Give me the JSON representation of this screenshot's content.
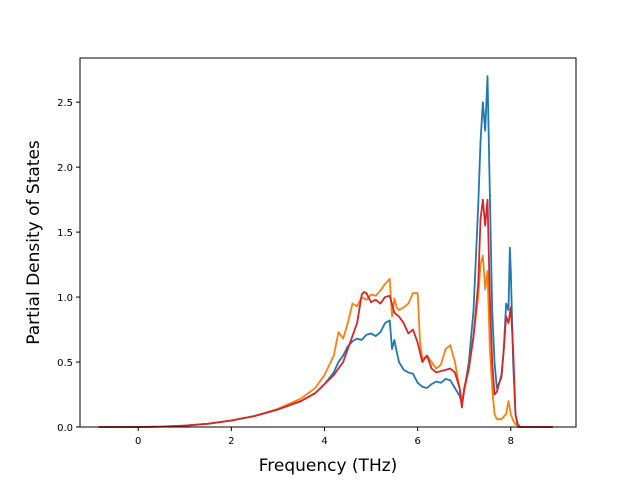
{
  "chart_data": {
    "type": "line",
    "title": "",
    "xlabel": "Frequency (THz)",
    "ylabel": "Partial Density of States",
    "xlim": [
      -1.25,
      9.4
    ],
    "ylim": [
      0,
      2.84
    ],
    "xticks": [
      0,
      2,
      4,
      6,
      8
    ],
    "yticks": [
      0.0,
      0.5,
      1.0,
      1.5,
      2.0,
      2.5
    ],
    "xtick_labels": [
      "0",
      "2",
      "4",
      "6",
      "8"
    ],
    "ytick_labels": [
      "0.0",
      "0.5",
      "1.0",
      "1.5",
      "2.0",
      "2.5"
    ],
    "grid": false,
    "legend": false,
    "series": [
      {
        "color": "#1f77b4",
        "x": [
          -0.85,
          0.0,
          0.5,
          1.0,
          1.5,
          2.0,
          2.5,
          3.0,
          3.5,
          3.8,
          4.0,
          4.2,
          4.3,
          4.4,
          4.5,
          4.6,
          4.7,
          4.8,
          4.9,
          5.0,
          5.1,
          5.2,
          5.3,
          5.4,
          5.45,
          5.5,
          5.55,
          5.6,
          5.7,
          5.8,
          5.9,
          6.0,
          6.1,
          6.2,
          6.3,
          6.4,
          6.5,
          6.6,
          6.7,
          6.8,
          6.9,
          6.95,
          7.0,
          7.1,
          7.2,
          7.3,
          7.35,
          7.4,
          7.45,
          7.5,
          7.55,
          7.6,
          7.65,
          7.7,
          7.8,
          7.85,
          7.9,
          7.95,
          7.98,
          8.0,
          8.05,
          8.1,
          8.15,
          8.2,
          8.9
        ],
        "y": [
          0.0,
          0.0,
          0.003,
          0.01,
          0.025,
          0.05,
          0.085,
          0.135,
          0.2,
          0.26,
          0.33,
          0.42,
          0.5,
          0.55,
          0.62,
          0.66,
          0.68,
          0.67,
          0.71,
          0.72,
          0.7,
          0.73,
          0.8,
          0.82,
          0.6,
          0.67,
          0.58,
          0.5,
          0.44,
          0.42,
          0.41,
          0.34,
          0.31,
          0.3,
          0.33,
          0.35,
          0.34,
          0.37,
          0.36,
          0.3,
          0.24,
          0.18,
          0.28,
          0.5,
          0.9,
          1.7,
          2.2,
          2.5,
          2.28,
          2.7,
          1.8,
          0.9,
          0.5,
          0.3,
          0.38,
          0.6,
          0.95,
          0.9,
          1.38,
          1.2,
          0.5,
          0.1,
          0.0,
          0.0,
          0.0
        ]
      },
      {
        "color": "#ff7f0e",
        "x": [
          -0.85,
          0.0,
          0.5,
          1.0,
          1.5,
          2.0,
          2.5,
          3.0,
          3.5,
          3.8,
          4.0,
          4.2,
          4.3,
          4.4,
          4.5,
          4.6,
          4.7,
          4.8,
          4.9,
          5.0,
          5.1,
          5.2,
          5.3,
          5.4,
          5.45,
          5.5,
          5.55,
          5.6,
          5.7,
          5.8,
          5.9,
          6.0,
          6.05,
          6.1,
          6.2,
          6.3,
          6.4,
          6.5,
          6.6,
          6.7,
          6.8,
          6.9,
          6.95,
          7.0,
          7.1,
          7.2,
          7.3,
          7.35,
          7.4,
          7.45,
          7.5,
          7.55,
          7.6,
          7.65,
          7.7,
          7.8,
          7.85,
          7.9,
          7.95,
          8.0,
          8.05,
          8.1,
          8.2,
          8.9
        ],
        "y": [
          0.0,
          0.0,
          0.003,
          0.01,
          0.025,
          0.05,
          0.085,
          0.14,
          0.22,
          0.3,
          0.4,
          0.55,
          0.73,
          0.68,
          0.8,
          0.95,
          0.93,
          1.0,
          0.98,
          1.02,
          1.01,
          1.05,
          1.1,
          1.14,
          0.85,
          0.99,
          0.92,
          0.9,
          0.92,
          0.95,
          1.03,
          1.03,
          0.66,
          0.52,
          0.55,
          0.5,
          0.45,
          0.48,
          0.6,
          0.63,
          0.5,
          0.3,
          0.2,
          0.28,
          0.45,
          0.7,
          1.0,
          1.25,
          1.32,
          1.06,
          1.2,
          0.6,
          0.3,
          0.1,
          0.06,
          0.06,
          0.08,
          0.1,
          0.2,
          0.1,
          0.05,
          0.02,
          0.0,
          0.0
        ]
      },
      {
        "color": "#d62728",
        "x": [
          -0.85,
          0.0,
          0.5,
          1.0,
          1.5,
          2.0,
          2.5,
          3.0,
          3.5,
          3.8,
          4.0,
          4.2,
          4.3,
          4.4,
          4.5,
          4.6,
          4.7,
          4.8,
          4.85,
          4.9,
          5.0,
          5.1,
          5.2,
          5.3,
          5.4,
          5.5,
          5.6,
          5.7,
          5.8,
          5.9,
          6.0,
          6.1,
          6.2,
          6.3,
          6.4,
          6.5,
          6.6,
          6.7,
          6.8,
          6.9,
          6.95,
          7.0,
          7.1,
          7.2,
          7.3,
          7.35,
          7.4,
          7.45,
          7.5,
          7.55,
          7.6,
          7.65,
          7.7,
          7.8,
          7.85,
          7.9,
          7.95,
          8.0,
          8.05,
          8.1,
          8.15,
          8.2,
          8.9
        ],
        "y": [
          0.0,
          0.0,
          0.003,
          0.01,
          0.025,
          0.05,
          0.085,
          0.135,
          0.2,
          0.26,
          0.33,
          0.4,
          0.45,
          0.5,
          0.6,
          0.7,
          0.8,
          1.02,
          1.04,
          1.03,
          0.96,
          0.98,
          0.95,
          1.0,
          1.01,
          0.88,
          0.85,
          0.8,
          0.72,
          0.75,
          0.65,
          0.5,
          0.55,
          0.45,
          0.42,
          0.43,
          0.44,
          0.45,
          0.42,
          0.3,
          0.15,
          0.3,
          0.45,
          0.7,
          1.1,
          1.6,
          1.75,
          1.55,
          1.75,
          1.0,
          0.5,
          0.25,
          0.27,
          0.4,
          0.6,
          0.85,
          0.8,
          0.92,
          0.6,
          0.1,
          0.02,
          0.0,
          0.0
        ]
      }
    ]
  }
}
